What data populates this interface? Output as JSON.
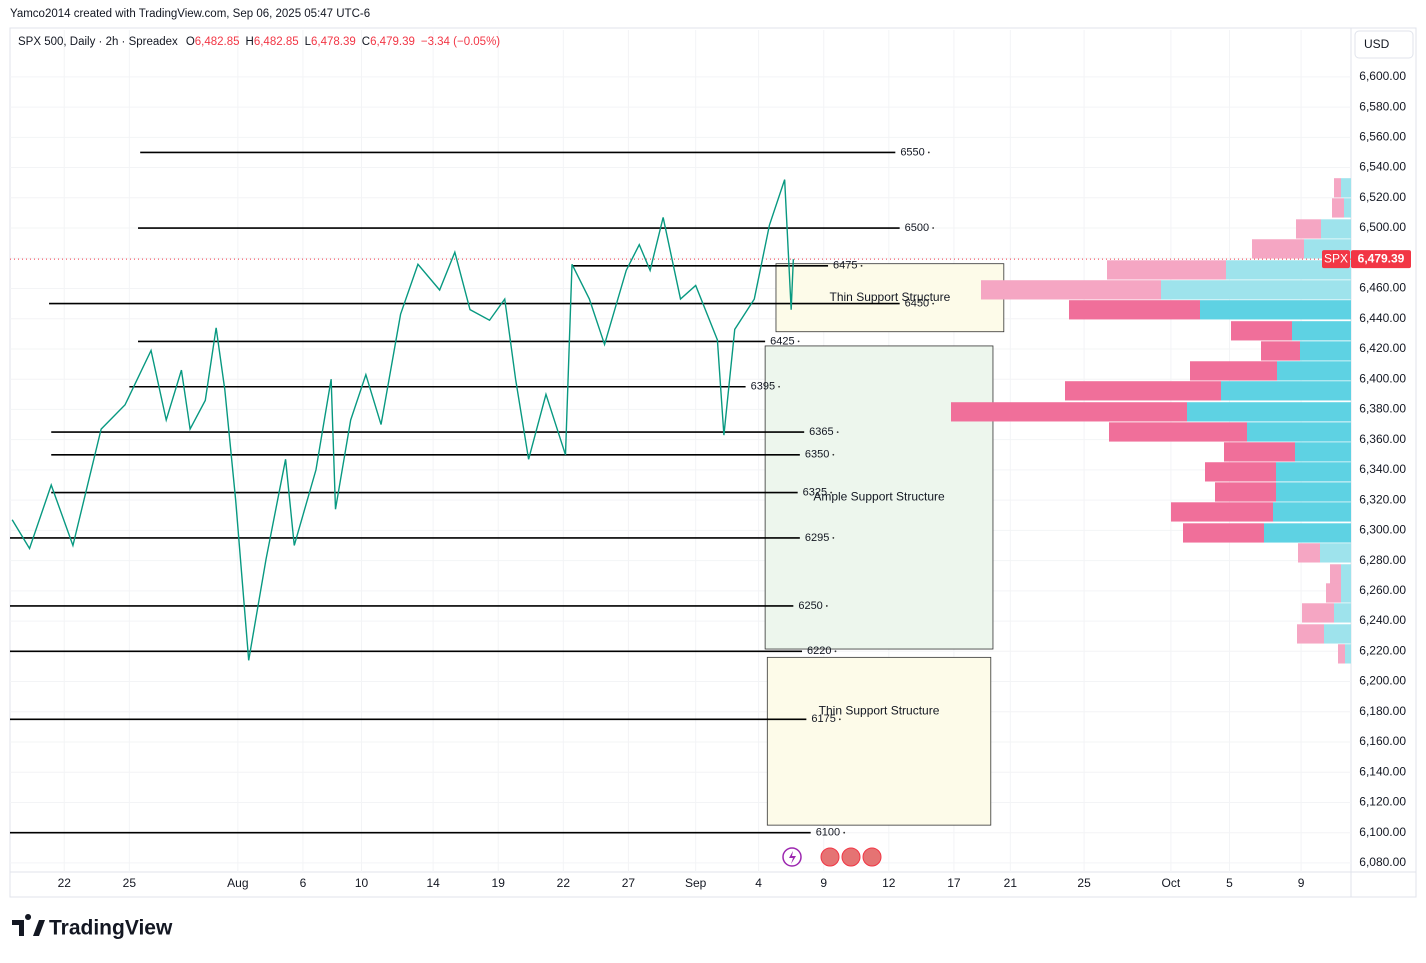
{
  "header": {
    "credit": "Yamco2014 created with TradingView.com, Sep 06, 2025 05:47 UTC-6",
    "symbol": "SPX 500, Daily · 2h · Spreadex",
    "ohlc": [
      {
        "key": "O",
        "value": "6,482.85"
      },
      {
        "key": "H",
        "value": "6,482.85"
      },
      {
        "key": "L",
        "value": "6,478.39"
      },
      {
        "key": "C",
        "value": "6,479.39"
      }
    ],
    "change": "−3.34 (−0.05%)",
    "currency": "USD"
  },
  "chart_data": {
    "type": "line",
    "grid": true,
    "xlim": [
      -2.5,
      59.3
    ],
    "ylim": [
      6074,
      6631
    ],
    "xticks": [
      {
        "value": 0,
        "label": "22"
      },
      {
        "value": 3,
        "label": "25"
      },
      {
        "value": 8,
        "label": "Aug"
      },
      {
        "value": 11,
        "label": "6"
      },
      {
        "value": 13.7,
        "label": "10"
      },
      {
        "value": 17,
        "label": "14"
      },
      {
        "value": 20,
        "label": "19"
      },
      {
        "value": 23,
        "label": "22"
      },
      {
        "value": 26,
        "label": "27"
      },
      {
        "value": 29.1,
        "label": "Sep"
      },
      {
        "value": 32,
        "label": "4"
      },
      {
        "value": 35,
        "label": "9"
      },
      {
        "value": 38,
        "label": "12"
      },
      {
        "value": 41,
        "label": "17"
      },
      {
        "value": 43.6,
        "label": "21"
      },
      {
        "value": 47,
        "label": "25"
      },
      {
        "value": 51,
        "label": "Oct"
      },
      {
        "value": 53.7,
        "label": "5"
      },
      {
        "value": 57,
        "label": "9"
      }
    ],
    "yticks": [
      {
        "value": 6080,
        "label": "6,080.00"
      },
      {
        "value": 6100,
        "label": "6,100.00"
      },
      {
        "value": 6120,
        "label": "6,120.00"
      },
      {
        "value": 6140,
        "label": "6,140.00"
      },
      {
        "value": 6160,
        "label": "6,160.00"
      },
      {
        "value": 6180,
        "label": "6,180.00"
      },
      {
        "value": 6200,
        "label": "6,200.00"
      },
      {
        "value": 6220,
        "label": "6,220.00"
      },
      {
        "value": 6240,
        "label": "6,240.00"
      },
      {
        "value": 6260,
        "label": "6,260.00"
      },
      {
        "value": 6280,
        "label": "6,280.00"
      },
      {
        "value": 6300,
        "label": "6,300.00"
      },
      {
        "value": 6320,
        "label": "6,320.00"
      },
      {
        "value": 6340,
        "label": "6,340.00"
      },
      {
        "value": 6360,
        "label": "6,360.00"
      },
      {
        "value": 6380,
        "label": "6,380.00"
      },
      {
        "value": 6400,
        "label": "6,400.00"
      },
      {
        "value": 6420,
        "label": "6,420.00"
      },
      {
        "value": 6440,
        "label": "6,440.00"
      },
      {
        "value": 6460,
        "label": "6,460.00"
      },
      {
        "value": 6480,
        "label": "6,480.00"
      },
      {
        "value": 6500,
        "label": "6,500.00"
      },
      {
        "value": 6520,
        "label": "6,520.00"
      },
      {
        "value": 6540,
        "label": "6,540.00"
      },
      {
        "value": 6560,
        "label": "6,560.00"
      },
      {
        "value": 6580,
        "label": "6,580.00"
      },
      {
        "value": 6600,
        "label": "6,600.00"
      }
    ],
    "series": [
      {
        "name": "SPX",
        "color": "#089981",
        "x": [
          -2.4,
          -1.6,
          -0.6,
          0.4,
          1.7,
          2.8,
          4.0,
          4.7,
          5.4,
          5.8,
          6.5,
          7.0,
          7.4,
          7.9,
          8.5,
          9.3,
          10.2,
          10.6,
          11.6,
          12.3,
          12.5,
          13.2,
          13.9,
          14.6,
          15.5,
          16.3,
          17.3,
          18.0,
          18.7,
          19.6,
          20.3,
          20.8,
          21.4,
          22.2,
          23.1,
          23.4,
          24.2,
          24.9,
          25.9,
          26.5,
          27.0,
          27.6,
          28.4,
          29.1,
          30.1,
          30.4,
          30.9,
          31.8,
          32.5,
          33.2,
          33.5,
          33.6
        ],
        "values": [
          6307,
          6288,
          6330,
          6290,
          6367,
          6383,
          6419,
          6373,
          6406,
          6367,
          6386,
          6434,
          6393,
          6320,
          6214,
          6281,
          6347,
          6290,
          6340,
          6400,
          6314,
          6373,
          6403,
          6370,
          6443,
          6476,
          6459,
          6484,
          6446,
          6439,
          6453,
          6400,
          6347,
          6390,
          6350,
          6476,
          6453,
          6423,
          6472,
          6489,
          6472,
          6507,
          6453,
          6462,
          6426,
          6363,
          6433,
          6453,
          6502,
          6532,
          6446,
          6479.39
        ]
      }
    ],
    "last_price": {
      "name": "SPX",
      "value": 6479.39,
      "label": "6,479.39",
      "color": "#f23645"
    },
    "levels": [
      {
        "value": 6550,
        "x_start": 3.5,
        "x_end": 38.3
      },
      {
        "value": 6500,
        "x_start": 3.4,
        "x_end": 38.5
      },
      {
        "value": 6475,
        "x_start": 23.4,
        "x_end": 35.2
      },
      {
        "value": 6450,
        "x_start": -0.7,
        "x_end": 38.5
      },
      {
        "value": 6425,
        "x_start": 3.4,
        "x_end": 32.3
      },
      {
        "value": 6395,
        "x_start": 3.0,
        "x_end": 31.4
      },
      {
        "value": 6365,
        "x_start": -0.6,
        "x_end": 34.1
      },
      {
        "value": 6350,
        "x_start": -0.6,
        "x_end": 33.9
      },
      {
        "value": 6325,
        "x_start": -0.6,
        "x_end": 33.8
      },
      {
        "value": 6295,
        "x_start": -2.5,
        "x_end": 33.9
      },
      {
        "value": 6250,
        "x_start": -2.5,
        "x_end": 33.6
      },
      {
        "value": 6220,
        "x_start": -2.5,
        "x_end": 34.0
      },
      {
        "value": 6175,
        "x_start": -2.5,
        "x_end": 34.2
      },
      {
        "value": 6100,
        "x_start": -2.5,
        "x_end": 34.4
      }
    ],
    "zones": [
      {
        "label": "Thin Support Structure",
        "top": 6476.4,
        "bottom": 6431.4,
        "x_start": 32.8,
        "x_end": 43.3,
        "color": "#fdfbe9"
      },
      {
        "label": "Ample Support Structure",
        "top": 6422,
        "bottom": 6221.5,
        "x_start": 32.3,
        "x_end": 42.8,
        "color": "#edf6ed"
      },
      {
        "label": "Thin Support Structure",
        "top": 6216,
        "bottom": 6105,
        "x_start": 32.4,
        "x_end": 42.7,
        "color": "#fdfbe9"
      }
    ],
    "volume_profile": {
      "row_height": 13.4,
      "value_area": [
        6290,
        6450
      ],
      "colors": {
        "down": "#f06f9a",
        "up": "#5ed2e3",
        "down_outside": "#f5a6c3",
        "up_outside": "#9ee3ec"
      },
      "rows": [
        6526.6,
        6513.3,
        6499.4,
        6486.2,
        6472.3,
        6459.1,
        6445.9,
        6432.0,
        6418.7,
        6405.5,
        6392.3,
        6378.4,
        6365.1,
        6351.9,
        6338.7,
        6325.4,
        6312.2,
        6298.3,
        6285.1,
        6271.2,
        6258.6,
        6245.4,
        6231.5,
        6218.3
      ],
      "up": [
        10,
        7,
        30,
        47,
        125,
        190,
        151,
        59,
        51,
        74,
        130,
        164,
        104,
        56,
        75,
        75,
        78,
        87,
        31,
        10,
        10,
        17,
        27,
        6
      ],
      "down": [
        7,
        12,
        25,
        52,
        119,
        180,
        131,
        61,
        39,
        87,
        156,
        236,
        138,
        71,
        71,
        61,
        102,
        81,
        22,
        11,
        15,
        32,
        27,
        7
      ]
    }
  },
  "footer": {
    "brand": "TradingView"
  }
}
